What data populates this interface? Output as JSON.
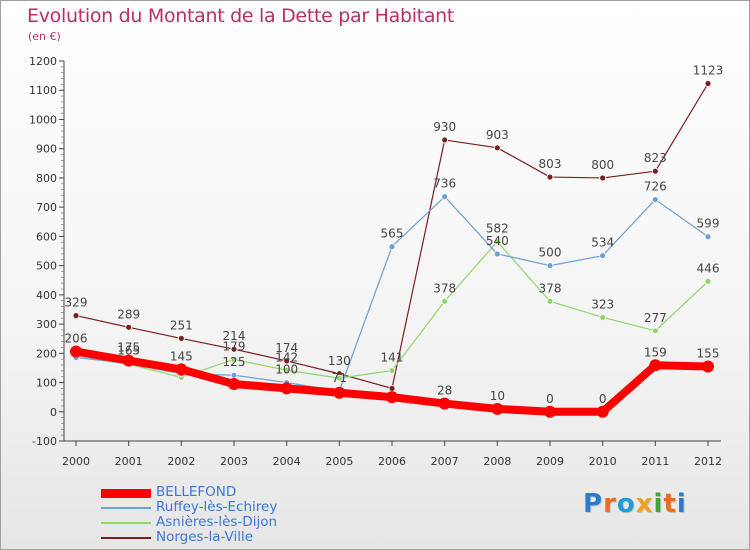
{
  "header": {
    "title": "Evolution du Montant de la Dette par Habitant",
    "unit": "(en €)"
  },
  "brand": {
    "letters": [
      "P",
      "r",
      "o",
      "x",
      "i",
      "t",
      "i"
    ],
    "colors": [
      "#2f7ac9",
      "#e96d1e",
      "#1f9bd6",
      "#f2a01e",
      "#3fa535",
      "#e96d1e",
      "#2f7ac9"
    ]
  },
  "chart_data": {
    "type": "line",
    "categories": [
      "2000",
      "2001",
      "2002",
      "2003",
      "2004",
      "2005",
      "2006",
      "2007",
      "2008",
      "2009",
      "2010",
      "2011",
      "2012"
    ],
    "ylim": [
      -100,
      1200
    ],
    "yticks": [
      -100,
      0,
      100,
      200,
      300,
      400,
      500,
      600,
      700,
      800,
      900,
      1000,
      1100,
      1200
    ],
    "grid": false,
    "legend_position": "bottom-left",
    "series": [
      {
        "name": "Norges-la-Ville",
        "color": "#7a1f1f",
        "width": 1.2,
        "values": [
          329,
          289,
          251,
          214,
          174,
          130,
          80,
          930,
          903,
          803,
          800,
          823,
          1123
        ],
        "labels": [
          true,
          true,
          true,
          true,
          true,
          true,
          false,
          true,
          true,
          true,
          true,
          true,
          true
        ]
      },
      {
        "name": "Asnières-lès-Dijon",
        "color": "#8fd66a",
        "width": 1.2,
        "values": [
          194,
          163,
          118,
          179,
          142,
          115,
          141,
          378,
          582,
          378,
          323,
          277,
          446
        ],
        "labels": [
          false,
          false,
          false,
          true,
          true,
          false,
          true,
          true,
          true,
          true,
          true,
          true,
          true
        ]
      },
      {
        "name": "Ruffey-lès-Echirey",
        "color": "#6b9fd8",
        "width": 1.2,
        "values": [
          186,
          165,
          130,
          125,
          100,
          71,
          565,
          736,
          540,
          500,
          534,
          726,
          599
        ],
        "labels": [
          false,
          true,
          false,
          true,
          true,
          true,
          true,
          true,
          true,
          true,
          true,
          true,
          true
        ]
      },
      {
        "name": "BELLEFOND",
        "color": "#ff0000",
        "width": 8,
        "values": [
          206,
          175,
          145,
          95,
          80,
          65,
          50,
          28,
          10,
          0,
          0,
          159,
          155
        ],
        "labels": [
          true,
          true,
          true,
          false,
          false,
          false,
          false,
          true,
          true,
          true,
          true,
          true,
          true
        ]
      }
    ],
    "legend_order": [
      "BELLEFOND",
      "Ruffey-lès-Echirey",
      "Asnières-lès-Dijon",
      "Norges-la-Ville"
    ]
  }
}
